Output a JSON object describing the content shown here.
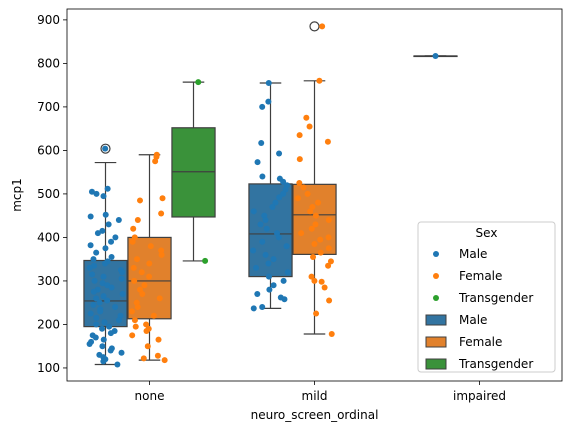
{
  "chart_data": {
    "type": "box",
    "xlabel": "neuro_screen_ordinal",
    "ylabel": "mcp1",
    "categories": [
      "none",
      "mild",
      "impaired"
    ],
    "ylim": [
      70,
      925
    ],
    "yticks": [
      100,
      200,
      300,
      400,
      500,
      600,
      700,
      800,
      900
    ],
    "legend": {
      "title": "Sex",
      "placement": "lower right",
      "point_entries": [
        "Male",
        "Female",
        "Transgender"
      ],
      "box_entries": [
        "Male",
        "Female",
        "Transgender"
      ]
    },
    "colors": {
      "Male": "#1f77b4",
      "Female": "#ff7f0e",
      "Transgender": "#2ca02c",
      "Male_box": "#3274a1",
      "Female_box": "#e1812c",
      "Transgender_box": "#3a923a"
    },
    "series": [
      {
        "name": "Male",
        "boxes": [
          {
            "category": "none",
            "q1": 195,
            "median": 254,
            "q3": 347,
            "whisker_low": 108,
            "whisker_high": 572,
            "outliers": [
              604
            ]
          },
          {
            "category": "mild",
            "q1": 310,
            "median": 408,
            "q3": 523,
            "whisker_low": 237,
            "whisker_high": 755,
            "outliers": []
          },
          {
            "category": "impaired",
            "q1": 817,
            "median": 817,
            "q3": 817,
            "whisker_low": 817,
            "whisker_high": 817,
            "outliers": []
          }
        ],
        "points": [
          {
            "category": "none",
            "values": [
              604,
              512,
              505,
              500,
              495,
              452,
              448,
              440,
              430,
              415,
              410,
              400,
              390,
              382,
              375,
              365,
              355,
              350,
              345,
              340,
              335,
              330,
              325,
              320,
              315,
              310,
              305,
              300,
              295,
              290,
              285,
              280,
              275,
              270,
              265,
              260,
              255,
              250,
              245,
              240,
              235,
              230,
              225,
              220,
              215,
              210,
              205,
              200,
              195,
              190,
              185,
              180,
              175,
              170,
              165,
              160,
              155,
              150,
              145,
              140,
              135,
              130,
              125,
              120,
              115,
              108
            ]
          },
          {
            "category": "mild",
            "values": [
              755,
              712,
              700,
              617,
              593,
              573,
              540,
              535,
              528,
              520,
              510,
              500,
              492,
              480,
              470,
              460,
              450,
              440,
              430,
              420,
              410,
              400,
              390,
              380,
              370,
              360,
              350,
              340,
              330,
              320,
              310,
              300,
              290,
              280,
              270,
              262,
              258,
              240,
              237
            ]
          },
          {
            "category": "impaired",
            "values": [
              817
            ]
          }
        ]
      },
      {
        "name": "Female",
        "boxes": [
          {
            "category": "none",
            "q1": 213,
            "median": 300,
            "q3": 400,
            "whisker_low": 118,
            "whisker_high": 590,
            "outliers": []
          },
          {
            "category": "mild",
            "q1": 361,
            "median": 452,
            "q3": 522,
            "whisker_low": 178,
            "whisker_high": 760,
            "outliers": [
              885
            ]
          }
        ],
        "points": [
          {
            "category": "none",
            "values": [
              590,
              585,
              575,
              490,
              485,
              455,
              440,
              420,
              400,
              390,
              380,
              370,
              360,
              350,
              340,
              330,
              320,
              310,
              300,
              290,
              280,
              270,
              260,
              250,
              240,
              230,
              220,
              210,
              200,
              195,
              190,
              185,
              175,
              165,
              150,
              128,
              122,
              118
            ]
          },
          {
            "category": "mild",
            "values": [
              885,
              760,
              675,
              655,
              635,
              620,
              580,
              525,
              515,
              500,
              490,
              480,
              470,
              460,
              450,
              440,
              430,
              420,
              410,
              400,
              395,
              385,
              375,
              365,
              355,
              345,
              335,
              310,
              300,
              298,
              285,
              255,
              225,
              178
            ]
          }
        ]
      },
      {
        "name": "Transgender",
        "boxes": [
          {
            "category": "none",
            "q1": 447,
            "median": 551,
            "q3": 652,
            "whisker_low": 346,
            "whisker_high": 757,
            "outliers": []
          }
        ],
        "points": [
          {
            "category": "none",
            "values": [
              757,
              346
            ]
          }
        ]
      }
    ]
  }
}
